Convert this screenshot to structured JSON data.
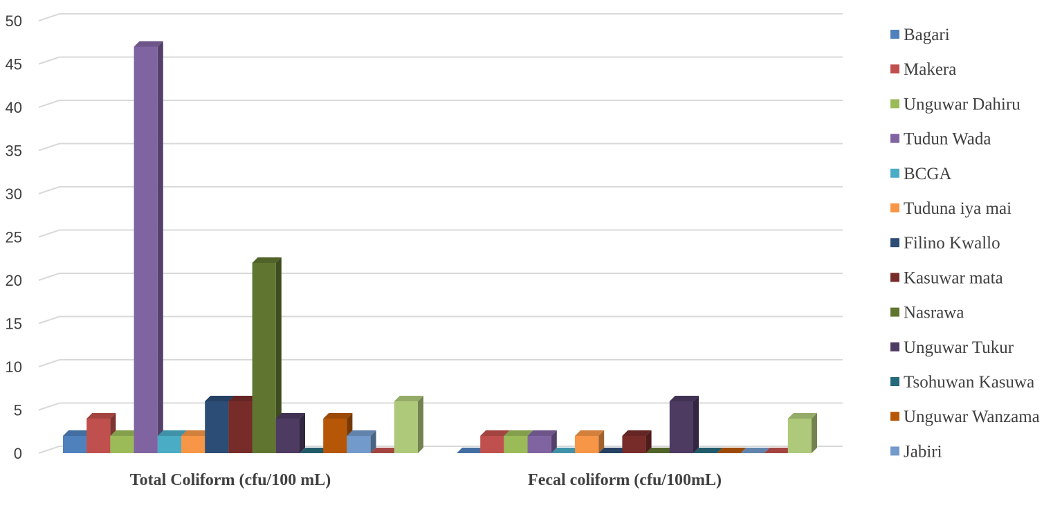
{
  "chart_data": {
    "type": "bar",
    "style": "3d-clustered-column",
    "categories": [
      "Total Coliform (cfu/100 mL)",
      "Fecal coliform (cfu/100mL)"
    ],
    "yticks": [
      "0",
      "5",
      "10",
      "15",
      "20",
      "25",
      "30",
      "35",
      "40",
      "45",
      "50"
    ],
    "ylim": [
      0,
      50
    ],
    "grid": true,
    "legend": "right",
    "series": [
      {
        "name": "Bagari",
        "values": [
          2,
          0
        ],
        "color": "#4f81bd"
      },
      {
        "name": "Makera",
        "values": [
          4,
          2
        ],
        "color": "#c0504d"
      },
      {
        "name": "Unguwar Dahiru",
        "values": [
          2,
          2
        ],
        "color": "#9bbb59"
      },
      {
        "name": "Tudun Wada",
        "values": [
          47,
          2
        ],
        "color": "#8064a2"
      },
      {
        "name": "BCGA",
        "values": [
          2,
          0
        ],
        "color": "#4bacc6"
      },
      {
        "name": "Tuduna iya mai",
        "values": [
          2,
          2
        ],
        "color": "#f79646"
      },
      {
        "name": "Filino Kwallo",
        "values": [
          6,
          0
        ],
        "color": "#2c4d75"
      },
      {
        "name": "Kasuwar mata",
        "values": [
          6,
          2
        ],
        "color": "#772c2a"
      },
      {
        "name": "Nasrawa",
        "values": [
          22,
          0
        ],
        "color": "#5f7530"
      },
      {
        "name": "Unguwar Tukur",
        "values": [
          4,
          6
        ],
        "color": "#4d3b62"
      },
      {
        "name": "Tsohuwan Kasuwa",
        "values": [
          0,
          0
        ],
        "color": "#276a7c"
      },
      {
        "name": "Unguwar Wanzama",
        "values": [
          4,
          0
        ],
        "color": "#b65708"
      },
      {
        "name": "Jabiri",
        "values": [
          2,
          0
        ],
        "color": "#729aca"
      },
      {
        "name": "",
        "values": [
          0,
          0
        ],
        "color": "#c0504d"
      },
      {
        "name": "",
        "values": [
          6,
          4
        ],
        "color": "#afc97a"
      }
    ]
  }
}
